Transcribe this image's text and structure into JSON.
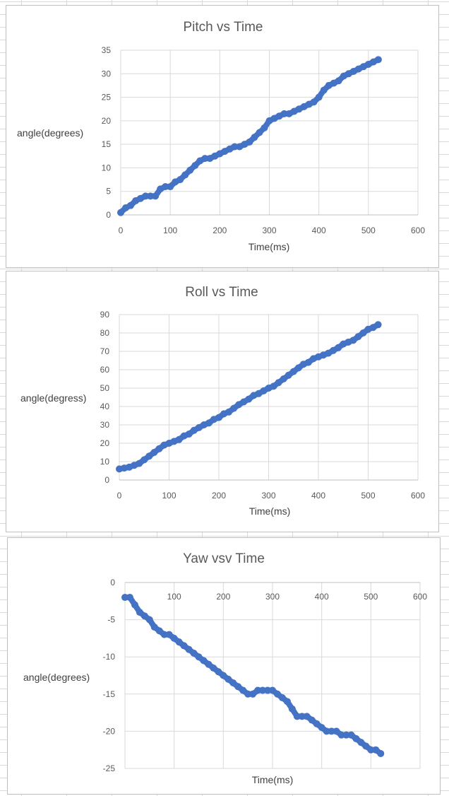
{
  "chart_data": [
    {
      "type": "scatter",
      "title": "Pitch vs Time",
      "xlabel": "Time(ms)",
      "ylabel": "angle(degrees)",
      "xlim": [
        0,
        600
      ],
      "ylim": [
        0,
        35
      ],
      "xticks": [
        0,
        100,
        200,
        300,
        400,
        500,
        600
      ],
      "yticks": [
        0,
        5,
        10,
        15,
        20,
        25,
        30,
        35
      ],
      "grid": true,
      "legend": "none",
      "marker_color": "#4472c4",
      "series": [
        {
          "x": [
            0,
            10,
            20,
            30,
            40,
            50,
            60,
            70,
            80,
            90,
            100,
            110,
            120,
            130,
            140,
            150,
            160,
            170,
            180,
            190,
            200,
            210,
            220,
            230,
            240,
            250,
            260,
            270,
            280,
            290,
            300,
            310,
            320,
            330,
            340,
            350,
            360,
            370,
            380,
            390,
            400,
            410,
            420,
            430,
            440,
            450,
            460,
            470,
            480,
            490,
            500,
            510,
            520
          ],
          "y": [
            0.5,
            1.5,
            2.0,
            3.0,
            3.5,
            4.0,
            4.0,
            4.0,
            5.5,
            6.0,
            6.0,
            7.0,
            7.5,
            8.5,
            9.5,
            10.5,
            11.5,
            12.0,
            12.0,
            12.5,
            13.0,
            13.5,
            14.0,
            14.5,
            14.5,
            15.0,
            15.5,
            16.5,
            17.5,
            18.5,
            20.0,
            20.5,
            21.0,
            21.5,
            21.5,
            22.0,
            22.5,
            23.0,
            23.5,
            24.0,
            25.0,
            26.5,
            27.5,
            28.0,
            28.5,
            29.5,
            30.0,
            30.5,
            31.0,
            31.5,
            32.0,
            32.5,
            33.0
          ]
        }
      ]
    },
    {
      "type": "scatter",
      "title": "Roll vs Time",
      "xlabel": "Time(ms)",
      "ylabel": "angle(degress)",
      "xlim": [
        0,
        600
      ],
      "ylim": [
        0,
        90
      ],
      "xticks": [
        0,
        100,
        200,
        300,
        400,
        500,
        600
      ],
      "yticks": [
        0,
        10,
        20,
        30,
        40,
        50,
        60,
        70,
        80,
        90
      ],
      "grid": true,
      "legend": "none",
      "marker_color": "#4472c4",
      "series": [
        {
          "x": [
            0,
            10,
            20,
            30,
            40,
            50,
            60,
            70,
            80,
            90,
            100,
            110,
            120,
            130,
            140,
            150,
            160,
            170,
            180,
            190,
            200,
            210,
            220,
            230,
            240,
            250,
            260,
            270,
            280,
            290,
            300,
            310,
            320,
            330,
            340,
            350,
            360,
            370,
            380,
            390,
            400,
            410,
            420,
            430,
            440,
            450,
            460,
            470,
            480,
            490,
            500,
            510,
            520
          ],
          "y": [
            6,
            6.5,
            7,
            8,
            9,
            11,
            13,
            15,
            17,
            19,
            20,
            21,
            22,
            24,
            25,
            27,
            28.5,
            30,
            31,
            33,
            34,
            36,
            37,
            39,
            41,
            42.5,
            44,
            46,
            47,
            48.5,
            50,
            51,
            53,
            55,
            57,
            59,
            61,
            63,
            64,
            66,
            67,
            68,
            69,
            70.5,
            72,
            74,
            75,
            76,
            78,
            80,
            82,
            83,
            84.5
          ]
        }
      ]
    },
    {
      "type": "scatter",
      "title": "Yaw vsv Time",
      "xlabel": "Time(ms)",
      "ylabel": "angle(degrees)",
      "xlim": [
        0,
        600
      ],
      "ylim": [
        -25,
        0
      ],
      "xticks": [
        0,
        100,
        200,
        300,
        400,
        500,
        600
      ],
      "yticks": [
        0,
        -5,
        -10,
        -15,
        -20,
        -25
      ],
      "xaxis_position": "top",
      "grid": true,
      "legend": "none",
      "marker_color": "#4472c4",
      "series": [
        {
          "x": [
            0,
            10,
            20,
            30,
            40,
            50,
            60,
            70,
            80,
            90,
            100,
            110,
            120,
            130,
            140,
            150,
            160,
            170,
            180,
            190,
            200,
            210,
            220,
            230,
            240,
            250,
            260,
            270,
            280,
            290,
            300,
            310,
            320,
            330,
            340,
            350,
            360,
            370,
            380,
            390,
            400,
            410,
            420,
            430,
            440,
            450,
            460,
            470,
            480,
            490,
            500,
            510,
            520
          ],
          "y": [
            -2,
            -2,
            -3,
            -4,
            -4.5,
            -5,
            -6,
            -6.5,
            -7,
            -7,
            -7.5,
            -8,
            -8.5,
            -9,
            -9.5,
            -10,
            -10.5,
            -11,
            -11.5,
            -12,
            -12.5,
            -13,
            -13.5,
            -14,
            -14.5,
            -15,
            -15,
            -14.5,
            -14.5,
            -14.5,
            -14.5,
            -15,
            -15.5,
            -16,
            -17,
            -18,
            -18,
            -18,
            -18.5,
            -19,
            -19.5,
            -20,
            -20,
            -20,
            -20.5,
            -20.5,
            -20.5,
            -21,
            -21.5,
            -22,
            -22.5,
            -22.5,
            -23
          ]
        }
      ]
    }
  ]
}
